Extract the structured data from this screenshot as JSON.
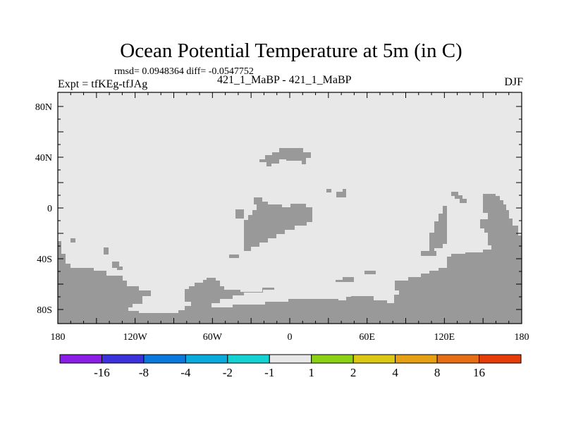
{
  "title": "Ocean Potential Temperature at 5m (in C)",
  "stats": "rmsd= 0.0948364 diff= -0.0547752",
  "expt_label": "Expt = tfKEg-tfJAg",
  "runs_label": "421_1_MaBP - 421_1_MaBP",
  "season": "DJF",
  "map": {
    "ocean_color": "#e8e8e8",
    "land_color": "#999999",
    "lon_labels": [
      "180",
      "120W",
      "60W",
      "0",
      "60E",
      "120E",
      "180"
    ],
    "lat_labels": [
      "80N",
      "40N",
      "0",
      "40S",
      "80S"
    ]
  },
  "colorbar": {
    "colors": [
      "#8a1ee6",
      "#3c32dc",
      "#0a78dc",
      "#0aaadc",
      "#14d2d2",
      "#e8e8e8",
      "#8cd214",
      "#dcc814",
      "#e6a014",
      "#e66e14",
      "#e63c0a"
    ],
    "labels": [
      "-16",
      "-8",
      "-4",
      "-2",
      "-1",
      "1",
      "2",
      "4",
      "8",
      "16"
    ]
  }
}
